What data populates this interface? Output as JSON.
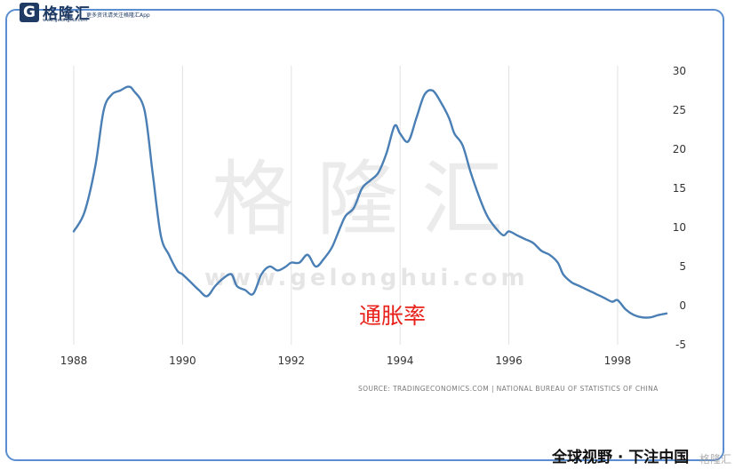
{
  "brand": {
    "logo_letter": "G",
    "name": "格隆汇",
    "url": "www.gelonghui.com",
    "slogan": "更多资讯请关注格隆汇App"
  },
  "watermark": {
    "big_text": "格隆汇",
    "url_text": "www.gelonghui.com"
  },
  "chart_data": {
    "type": "line",
    "series_label": "通胀率",
    "source": "SOURCE: TRADINGECONOMICS.COM | NATIONAL BUREAU OF STATISTICS OF CHINA",
    "x_ticks": [
      "1988",
      "1990",
      "1992",
      "1994",
      "1996",
      "1998"
    ],
    "x_range": [
      1988.0,
      1998.9
    ],
    "y_ticks": [
      "30",
      "25",
      "20",
      "15",
      "10",
      "5",
      "0",
      "-5"
    ],
    "y_range": [
      -5,
      30
    ],
    "grid": "vertical",
    "line_color": "#4a7fb5",
    "x": [
      1988.0,
      1988.2,
      1988.4,
      1988.55,
      1988.7,
      1988.85,
      1989.0,
      1989.1,
      1989.3,
      1989.45,
      1989.6,
      1989.75,
      1989.9,
      1990.0,
      1990.15,
      1990.3,
      1990.45,
      1990.6,
      1990.75,
      1990.9,
      1991.0,
      1991.15,
      1991.3,
      1991.45,
      1991.6,
      1991.75,
      1991.9,
      1992.0,
      1992.15,
      1992.3,
      1992.45,
      1992.6,
      1992.75,
      1992.9,
      1993.0,
      1993.15,
      1993.3,
      1993.45,
      1993.6,
      1993.75,
      1993.9,
      1994.0,
      1994.15,
      1994.3,
      1994.45,
      1994.6,
      1994.75,
      1994.9,
      1995.0,
      1995.15,
      1995.3,
      1995.45,
      1995.6,
      1995.75,
      1995.9,
      1996.0,
      1996.15,
      1996.3,
      1996.45,
      1996.6,
      1996.75,
      1996.9,
      1997.0,
      1997.15,
      1997.3,
      1997.45,
      1997.6,
      1997.75,
      1997.9,
      1998.0,
      1998.15,
      1998.3,
      1998.45,
      1998.6,
      1998.75,
      1998.9
    ],
    "y": [
      9.5,
      12.0,
      18.0,
      25.0,
      27.0,
      27.5,
      28.0,
      27.5,
      25.0,
      17.0,
      9.0,
      6.5,
      4.5,
      4.0,
      3.0,
      2.0,
      1.2,
      2.5,
      3.5,
      4.0,
      2.5,
      2.0,
      1.5,
      4.0,
      5.0,
      4.5,
      5.0,
      5.5,
      5.5,
      6.5,
      5.0,
      6.0,
      7.5,
      10.0,
      11.5,
      12.5,
      15.0,
      16.0,
      17.0,
      19.5,
      23.0,
      22.0,
      21.0,
      24.0,
      27.0,
      27.5,
      26.0,
      24.0,
      22.0,
      20.5,
      17.0,
      14.0,
      11.5,
      10.0,
      9.0,
      9.5,
      9.0,
      8.5,
      8.0,
      7.0,
      6.5,
      5.5,
      4.0,
      3.0,
      2.5,
      2.0,
      1.5,
      1.0,
      0.5,
      0.7,
      -0.5,
      -1.2,
      -1.5,
      -1.5,
      -1.2,
      -1.0
    ]
  },
  "footer": {
    "tagline": "全球视野 · 下注中国",
    "watermark": "格隆汇"
  }
}
